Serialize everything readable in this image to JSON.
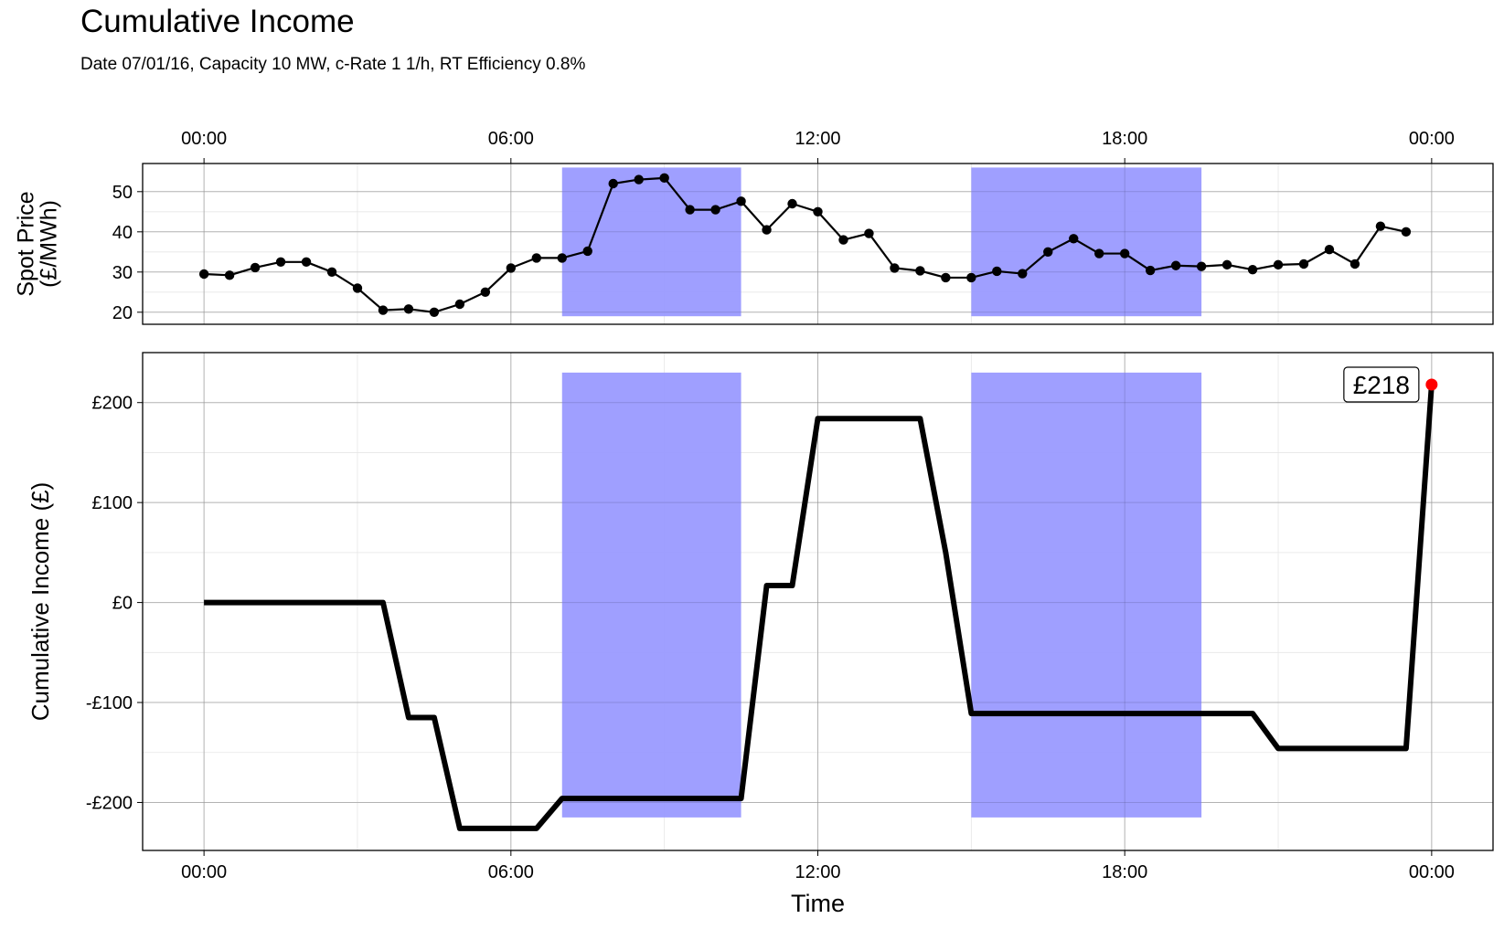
{
  "title": "Cumulative Income",
  "subtitle": "Date 07/01/16, Capacity 10 MW, c-Rate 1 1/h, RT Efficiency 0.8%",
  "colors": {
    "highlight": "#9999ff",
    "line": "#000000",
    "endpoint": "#ff0000",
    "grid": "#ebebeb"
  },
  "chart_data": [
    {
      "type": "line",
      "title": "Spot Price",
      "ylabel": "Spot Price\n(£/MWh)",
      "xlabel": "",
      "x_unit": "hours",
      "xlim": [
        -1.2,
        25.2
      ],
      "ylim": [
        17,
        57
      ],
      "xticks": [
        0,
        6,
        12,
        18,
        24
      ],
      "xtick_labels": [
        "00:00",
        "06:00",
        "12:00",
        "18:00",
        "00:00"
      ],
      "yticks": [
        20,
        30,
        40,
        50
      ],
      "ytick_labels": [
        "20",
        "30",
        "40",
        "50"
      ],
      "x_axis_position": "top",
      "grid": true,
      "markers": true,
      "highlight_bands": [
        {
          "x_start": 7.0,
          "x_end": 10.5,
          "y_start": 19,
          "y_end": 56
        },
        {
          "x_start": 15.0,
          "x_end": 19.5,
          "y_start": 19,
          "y_end": 56
        }
      ],
      "series": [
        {
          "name": "Spot Price",
          "x": [
            0,
            0.5,
            1,
            1.5,
            2,
            2.5,
            3,
            3.5,
            4,
            4.5,
            5,
            5.5,
            6,
            6.5,
            7,
            7.5,
            8,
            8.5,
            9,
            9.5,
            10,
            10.5,
            11,
            11.5,
            12,
            12.5,
            13,
            13.5,
            14,
            14.5,
            15,
            15.5,
            16,
            16.5,
            17,
            17.5,
            18,
            18.5,
            19,
            19.5,
            20,
            20.5,
            21,
            21.5,
            22,
            22.5,
            23,
            23.5
          ],
          "values": [
            29.5,
            29.2,
            31.1,
            32.5,
            32.5,
            30.0,
            26.0,
            20.5,
            20.8,
            20.0,
            22.0,
            25.0,
            31.0,
            33.5,
            33.5,
            35.2,
            52.0,
            53.0,
            53.4,
            45.5,
            45.5,
            47.6,
            40.5,
            47.0,
            45.0,
            38.0,
            39.6,
            31.0,
            30.3,
            28.6,
            28.6,
            30.2,
            29.6,
            35.0,
            38.3,
            34.6,
            34.6,
            30.4,
            31.6,
            31.4,
            31.8,
            30.6,
            31.8,
            32.0,
            35.6,
            32.0,
            41.4,
            40.0
          ]
        }
      ]
    },
    {
      "type": "line",
      "title": "Cumulative Income",
      "ylabel": "Cumulative Income (£)",
      "xlabel": "Time",
      "x_unit": "hours",
      "xlim": [
        -1.2,
        25.2
      ],
      "ylim": [
        -248,
        250
      ],
      "xticks": [
        0,
        6,
        12,
        18,
        24
      ],
      "xtick_labels": [
        "00:00",
        "06:00",
        "12:00",
        "18:00",
        "00:00"
      ],
      "yticks": [
        -200,
        -100,
        0,
        100,
        200
      ],
      "ytick_labels": [
        "-£200",
        "-£100",
        "£0",
        "£100",
        "£200"
      ],
      "grid": true,
      "highlight_bands": [
        {
          "x_start": 7.0,
          "x_end": 10.5,
          "y_start": -215,
          "y_end": 230
        },
        {
          "x_start": 15.0,
          "x_end": 19.5,
          "y_start": -215,
          "y_end": 230
        }
      ],
      "series": [
        {
          "name": "Cumulative Income",
          "x": [
            0,
            3.5,
            4,
            4.5,
            5,
            6.5,
            7,
            10.5,
            11,
            11.5,
            12,
            14,
            14.5,
            15,
            20.5,
            21,
            23.5,
            24
          ],
          "values": [
            0,
            0,
            -115,
            -115,
            -226,
            -226,
            -196,
            -196,
            17,
            17,
            184,
            184,
            50,
            -111,
            -111,
            -146,
            -146,
            218
          ]
        }
      ],
      "endpoint": {
        "x": 24,
        "value": 218,
        "label": "£218"
      }
    }
  ]
}
